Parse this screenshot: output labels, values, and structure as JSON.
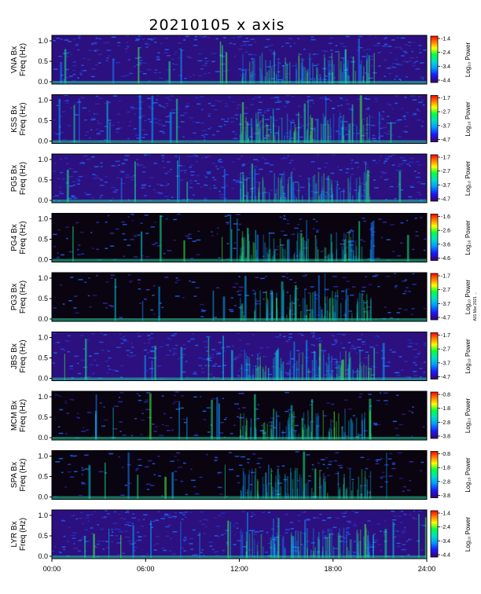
{
  "chart_data": {
    "type": "heatmap",
    "title": "20210105 x axis",
    "x_tick_labels": [
      "00:00",
      "06:00",
      "12:00",
      "18:00",
      "24:00"
    ],
    "x_range_hours": [
      0,
      24
    ],
    "y_range": [
      0,
      1
    ],
    "y_tick_labels": [
      "0.0",
      "0.5",
      "1.0"
    ],
    "colorbar_label": "Log₁₀ Power",
    "colormap": [
      "#3b006b",
      "#1a1aff",
      "#00a0ff",
      "#00e0c0",
      "#00ff40",
      "#ffff00",
      "#ff8000",
      "#ff0000"
    ],
    "side_text": "A01 Mar 2021 ...",
    "panels": [
      {
        "station": "VNA",
        "ylabel_line1": "VNA Bx",
        "ylabel_line2": "Freq (Hz)",
        "colorbar_ticks": [
          "-1.4",
          "-2.4",
          "-3.4",
          "-4.4"
        ],
        "background": "dark-blue"
      },
      {
        "station": "KSS",
        "ylabel_line1": "KSS Bx",
        "ylabel_line2": "Freq (Hz)",
        "colorbar_ticks": [
          "-1.7",
          "-2.7",
          "-3.7",
          "-4.7"
        ],
        "background": "dark-blue"
      },
      {
        "station": "PG5",
        "ylabel_line1": "PG5 Bx",
        "ylabel_line2": "Freq (Hz)",
        "colorbar_ticks": [
          "-1.7",
          "-2.7",
          "-3.7",
          "-4.7"
        ],
        "background": "dark-blue"
      },
      {
        "station": "PG4",
        "ylabel_line1": "PG4 Bx",
        "ylabel_line2": "Freq (Hz)",
        "colorbar_ticks": [
          "-1.6",
          "-2.6",
          "-3.6",
          "-4.6"
        ],
        "background": "black"
      },
      {
        "station": "PG3",
        "ylabel_line1": "PG3 Bx",
        "ylabel_line2": "Freq (Hz)",
        "colorbar_ticks": [
          "-1.7",
          "-2.7",
          "-3.7",
          "-4.7"
        ],
        "background": "black"
      },
      {
        "station": "JBS",
        "ylabel_line1": "JBS Bx",
        "ylabel_line2": "Freq (Hz)",
        "colorbar_ticks": [
          "-1.7",
          "-2.7",
          "-3.7",
          "-4.7"
        ],
        "background": "dark-blue"
      },
      {
        "station": "MCM",
        "ylabel_line1": "MCM Bx",
        "ylabel_line2": "Freq (Hz)",
        "colorbar_ticks": [
          "-0.8",
          "-1.8",
          "-2.8",
          "-3.8"
        ],
        "background": "black"
      },
      {
        "station": "SPA",
        "ylabel_line1": "SPA Bx",
        "ylabel_line2": "Freq (Hz)",
        "colorbar_ticks": [
          "-0.8",
          "-1.8",
          "-2.8",
          "-3.8"
        ],
        "background": "black"
      },
      {
        "station": "LYR",
        "ylabel_line1": "LYR Bx",
        "ylabel_line2": "Freq (Hz)",
        "colorbar_ticks": [
          "-1.4",
          "-2.4",
          "-3.4",
          "-4.4"
        ],
        "background": "dark-blue"
      }
    ]
  }
}
